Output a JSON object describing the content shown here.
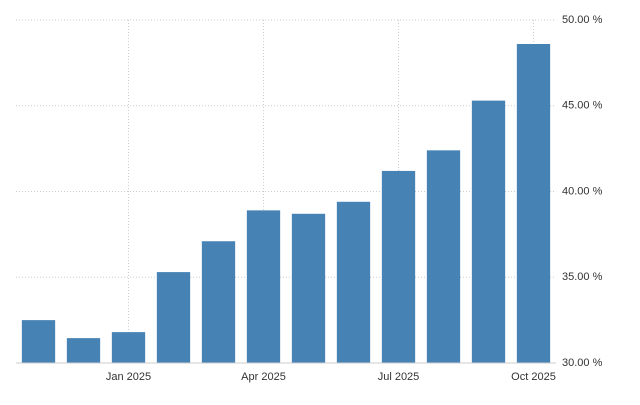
{
  "chart_data": {
    "type": "bar",
    "categories": [
      null,
      null,
      "Jan 2025",
      null,
      null,
      "Apr 2025",
      null,
      null,
      "Jul 2025",
      null,
      null,
      "Oct 2025"
    ],
    "values": [
      32.5,
      31.45,
      31.8,
      35.3,
      37.1,
      38.9,
      38.7,
      39.4,
      41.2,
      42.4,
      45.3,
      48.6
    ],
    "color": "#4682b4",
    "ylim": [
      30,
      50
    ],
    "yticks": [
      {
        "value": 30,
        "label": "30.00 %"
      },
      {
        "value": 35,
        "label": "35.00 %"
      },
      {
        "value": 40,
        "label": "40.00 %"
      },
      {
        "value": 45,
        "label": "45.00 %"
      },
      {
        "value": 50,
        "label": "50.00 %"
      }
    ],
    "grid": true
  }
}
